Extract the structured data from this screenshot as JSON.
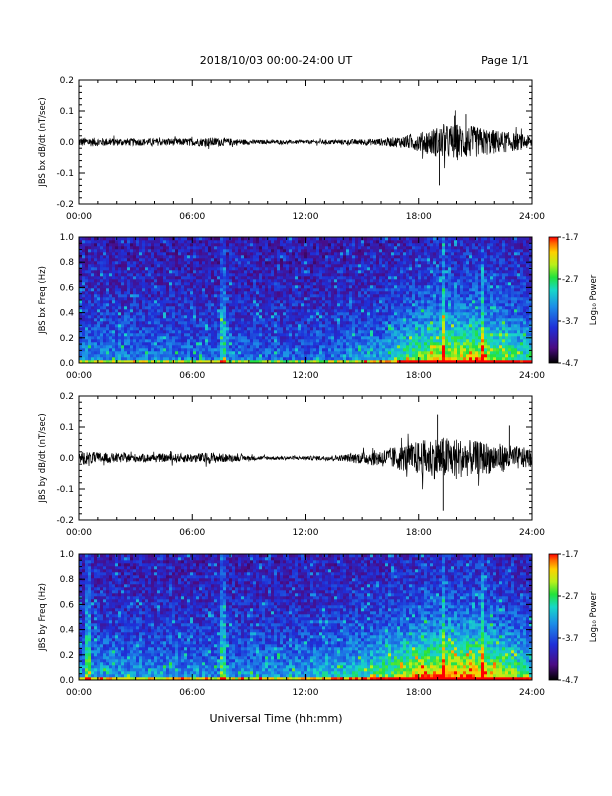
{
  "header": {
    "date_range": "2018/10/03  00:00-24:00 UT",
    "page": "Page 1/1"
  },
  "xlabel": "Universal Time (hh:mm)",
  "colorbar_label": "Log₁₀ Power",
  "chart_data": [
    {
      "type": "line",
      "ylabel": "JBS bx dB/dt (nT/sec)",
      "xlim": [
        0,
        24
      ],
      "ylim": [
        -0.2,
        0.2
      ],
      "x_ticks": [
        "00:00",
        "06:00",
        "12:00",
        "18:00",
        "24:00"
      ],
      "y_ticks": [
        "-0.2",
        "-0.1",
        "0.0",
        "0.1",
        "0.2"
      ],
      "envelope_hours": [
        0,
        2,
        4,
        6,
        7,
        8,
        9,
        10,
        12,
        14,
        16,
        17,
        18,
        19,
        20,
        21,
        22,
        23,
        24
      ],
      "envelope_amplitude": [
        0.015,
        0.012,
        0.012,
        0.012,
        0.015,
        0.012,
        0.008,
        0.006,
        0.006,
        0.008,
        0.012,
        0.018,
        0.03,
        0.05,
        0.06,
        0.05,
        0.04,
        0.03,
        0.02
      ],
      "peak_events": [
        {
          "x": 19.1,
          "y": -0.14
        },
        {
          "x": 20.5,
          "y": 0.09
        },
        {
          "x": 19.9,
          "y": 0.085
        }
      ]
    },
    {
      "type": "heatmap",
      "ylabel": "JBS bx Freq (Hz)",
      "xlim": [
        0,
        24
      ],
      "ylim": [
        0,
        1.0
      ],
      "x_ticks": [
        "00:00",
        "06:00",
        "12:00",
        "18:00",
        "24:00"
      ],
      "y_ticks": [
        "0.0",
        "0.2",
        "0.4",
        "0.6",
        "0.8",
        "1.0"
      ],
      "colorbar": {
        "min": -4.7,
        "max": -1.7,
        "ticks": [
          "-1.7",
          "-2.7",
          "-3.7",
          "-4.7"
        ]
      },
      "active_hours": [
        0,
        6,
        12,
        16,
        18,
        19,
        21,
        24
      ],
      "activity_level": [
        0.3,
        0.25,
        0.2,
        0.35,
        0.6,
        0.7,
        0.75,
        0.45
      ],
      "bright_streaks_hours": [
        7.6,
        19.3,
        21.4
      ]
    },
    {
      "type": "line",
      "ylabel": "JBS by dB/dt (nT/sec)",
      "xlim": [
        0,
        24
      ],
      "ylim": [
        -0.2,
        0.2
      ],
      "x_ticks": [
        "00:00",
        "06:00",
        "12:00",
        "18:00",
        "24:00"
      ],
      "y_ticks": [
        "-0.2",
        "-0.1",
        "0.0",
        "0.1",
        "0.2"
      ],
      "envelope_hours": [
        0,
        2,
        4,
        6,
        7,
        8,
        9,
        10,
        12,
        14,
        15,
        16,
        17,
        18,
        19,
        20,
        21,
        22,
        23,
        24
      ],
      "envelope_amplitude": [
        0.022,
        0.015,
        0.013,
        0.015,
        0.018,
        0.012,
        0.008,
        0.006,
        0.006,
        0.01,
        0.02,
        0.028,
        0.04,
        0.055,
        0.07,
        0.065,
        0.055,
        0.05,
        0.04,
        0.03
      ],
      "peak_events": [
        {
          "x": 19.0,
          "y": 0.14
        },
        {
          "x": 19.3,
          "y": -0.17
        },
        {
          "x": 22.8,
          "y": 0.105
        }
      ]
    },
    {
      "type": "heatmap",
      "ylabel": "JBS by Freq (Hz)",
      "xlim": [
        0,
        24
      ],
      "ylim": [
        0,
        1.0
      ],
      "x_ticks": [
        "00:00",
        "06:00",
        "12:00",
        "18:00",
        "24:00"
      ],
      "y_ticks": [
        "0.0",
        "0.2",
        "0.4",
        "0.6",
        "0.8",
        "1.0"
      ],
      "colorbar": {
        "min": -4.7,
        "max": -1.7,
        "ticks": [
          "-1.7",
          "-2.7",
          "-3.7",
          "-4.7"
        ]
      },
      "active_hours": [
        0,
        6,
        9,
        12,
        15,
        18,
        19,
        21,
        24
      ],
      "activity_level": [
        0.35,
        0.3,
        0.3,
        0.35,
        0.45,
        0.75,
        0.8,
        0.85,
        0.5
      ],
      "bright_streaks_hours": [
        0.5,
        7.6,
        19.3,
        21.4
      ]
    }
  ]
}
